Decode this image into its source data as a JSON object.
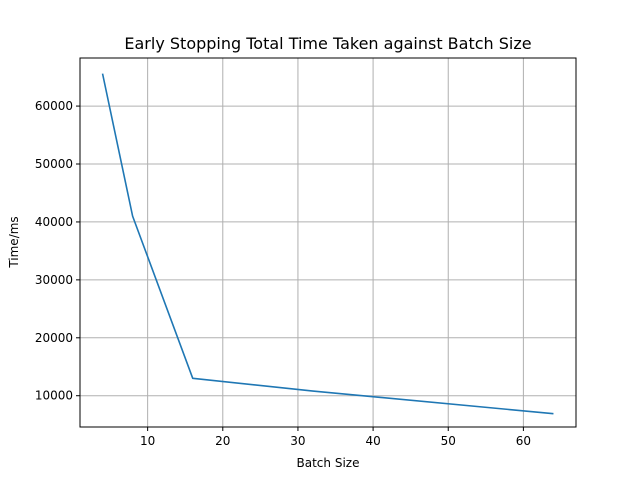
{
  "chart_data": {
    "type": "line",
    "title": "Early Stopping Total Time Taken against Batch Size",
    "xlabel": "Batch Size",
    "ylabel": "Time/ms",
    "xlim": [
      1,
      67
    ],
    "ylim": [
      4600,
      68300
    ],
    "x_ticks": [
      10,
      20,
      30,
      40,
      50,
      60
    ],
    "y_ticks": [
      10000,
      20000,
      30000,
      40000,
      50000,
      60000
    ],
    "grid": true,
    "series": [
      {
        "color": "#1f77b4",
        "x": [
          4,
          8,
          16,
          32,
          64
        ],
        "y": [
          65600,
          41000,
          13000,
          10800,
          6900
        ]
      }
    ]
  }
}
